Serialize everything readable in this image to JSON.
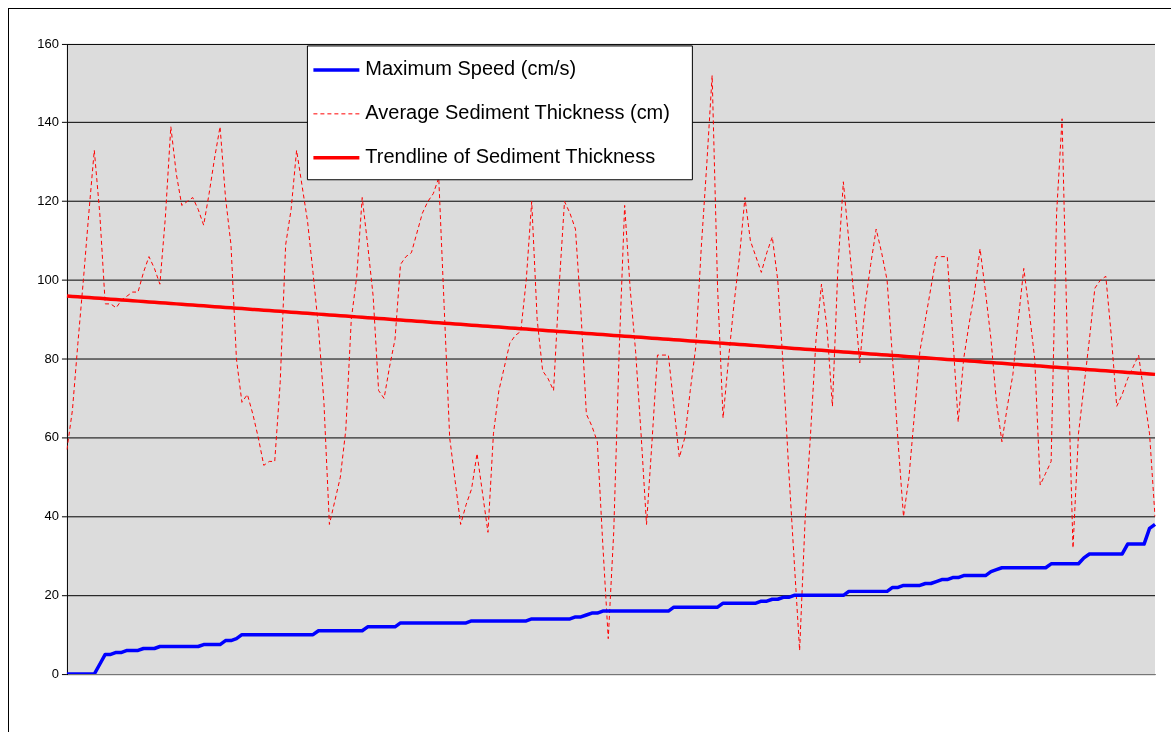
{
  "chart_data": {
    "type": "line",
    "categories": [
      null,
      null,
      null,
      null,
      null,
      null,
      null,
      null,
      null,
      null,
      null,
      null,
      null,
      null,
      null,
      null,
      null,
      null,
      null,
      null,
      null,
      null,
      null,
      null,
      null,
      null,
      null,
      null,
      null,
      null,
      null,
      null,
      null,
      null,
      null,
      null,
      null,
      null,
      null,
      null,
      null,
      null,
      null,
      null,
      null,
      null,
      null,
      null,
      null,
      null,
      null,
      null,
      null,
      null,
      null,
      null,
      null,
      null,
      null,
      null,
      null,
      null,
      null,
      null,
      null,
      null,
      null,
      null,
      null,
      null,
      null,
      null,
      null,
      null,
      null,
      null,
      null,
      null,
      null,
      null,
      null,
      null,
      null,
      null,
      null,
      null,
      null,
      null,
      null,
      null,
      null,
      null,
      null,
      null,
      null,
      null,
      null,
      null,
      null,
      null,
      null,
      null,
      null,
      null,
      null,
      null,
      null,
      null,
      null,
      null,
      null,
      null,
      null,
      null,
      null,
      null,
      null,
      null,
      null,
      null,
      null,
      null,
      null,
      null,
      null,
      null,
      null,
      null,
      null,
      null,
      null,
      null,
      null,
      null,
      null,
      null,
      null,
      null,
      null,
      null,
      null,
      null,
      null,
      null,
      null,
      null,
      null,
      null,
      null,
      null,
      null,
      null,
      null,
      null,
      null,
      null,
      null,
      null,
      null,
      null,
      null,
      null,
      null,
      null,
      null,
      null,
      null,
      null,
      null,
      null,
      null,
      null,
      null,
      null,
      null,
      null,
      null,
      null,
      null,
      null,
      null,
      null,
      null,
      null,
      null,
      null,
      null,
      null,
      null,
      null,
      null,
      null,
      null,
      null,
      null,
      null,
      null,
      null,
      null,
      null
    ],
    "ylim": [
      0,
      160
    ],
    "yticks": [
      0,
      20,
      40,
      60,
      80,
      100,
      120,
      140,
      160
    ],
    "grid": "y",
    "legend": "top",
    "tick_labels": "y",
    "marker": "none",
    "series": [
      {
        "name": "Maximum Speed (cm/s)",
        "color": "#0000ff",
        "line_style": "solid",
        "values": [
          0,
          0,
          0,
          0,
          0,
          0,
          2.5,
          5,
          5,
          5.5,
          5.5,
          6,
          6,
          6,
          6.5,
          6.5,
          6.5,
          7,
          7,
          7,
          7,
          7,
          7,
          7,
          7,
          7.5,
          7.5,
          7.5,
          7.5,
          8.5,
          8.5,
          9,
          10,
          10,
          10,
          10,
          10,
          10,
          10,
          10,
          10,
          10,
          10,
          10,
          10,
          10,
          11,
          11,
          11,
          11,
          11,
          11,
          11,
          11,
          11,
          12,
          12,
          12,
          12,
          12,
          12,
          13,
          13,
          13,
          13,
          13,
          13,
          13,
          13,
          13,
          13,
          13,
          13,
          13,
          13.5,
          13.5,
          13.5,
          13.5,
          13.5,
          13.5,
          13.5,
          13.5,
          13.5,
          13.5,
          13.5,
          14,
          14,
          14,
          14,
          14,
          14,
          14,
          14,
          14.5,
          14.5,
          15,
          15.5,
          15.5,
          16,
          16,
          16,
          16,
          16,
          16,
          16,
          16,
          16,
          16,
          16,
          16,
          16,
          17,
          17,
          17,
          17,
          17,
          17,
          17,
          17,
          17,
          18,
          18,
          18,
          18,
          18,
          18,
          18,
          18.5,
          18.5,
          19,
          19,
          19.5,
          19.5,
          20,
          20,
          20,
          20,
          20,
          20,
          20,
          20,
          20,
          20,
          21,
          21,
          21,
          21,
          21,
          21,
          21,
          21,
          22,
          22,
          22.5,
          22.5,
          22.5,
          22.5,
          23,
          23,
          23.5,
          24,
          24,
          24.5,
          24.5,
          25,
          25,
          25,
          25,
          25,
          26,
          26.5,
          27,
          27,
          27,
          27,
          27,
          27,
          27,
          27,
          27,
          28,
          28,
          28,
          28,
          28,
          28,
          29.5,
          30.5,
          30.5,
          30.5,
          30.5,
          30.5,
          30.5,
          30.5,
          33,
          33,
          33,
          33,
          37,
          38
        ]
      },
      {
        "name": "Average Sediment Thickness (cm)",
        "color": "#ff0000",
        "line_style": "dashed",
        "values": [
          57,
          67,
          84,
          100,
          117,
          133,
          117,
          94,
          94,
          93,
          95,
          96,
          97,
          97,
          102,
          106,
          103,
          99,
          116,
          139,
          127,
          119,
          120,
          121,
          118,
          114,
          122,
          131,
          139,
          121,
          109,
          80,
          69,
          71,
          66,
          60,
          53,
          54,
          54,
          74,
          109,
          118,
          133,
          124,
          115,
          102,
          88,
          69,
          38,
          44,
          50,
          62,
          90,
          101,
          121,
          109,
          96,
          72,
          70,
          78,
          85,
          104,
          106,
          107,
          112,
          117,
          120,
          122,
          126,
          93,
          60,
          49,
          38,
          43,
          47,
          56,
          46,
          36,
          61,
          72,
          78,
          84,
          86,
          87,
          100,
          120,
          90,
          77,
          75,
          72,
          98,
          120,
          117,
          113,
          92,
          66,
          63,
          59,
          33,
          9,
          36,
          82,
          119,
          98,
          82,
          61,
          38,
          59,
          81,
          81,
          81,
          68,
          55,
          60,
          72,
          83,
          108,
          129,
          152,
          98,
          65,
          80,
          94,
          106,
          121,
          110,
          106,
          102,
          107,
          111,
          100,
          78,
          52,
          29,
          6,
          39,
          61,
          85,
          99,
          88,
          68,
          103,
          125,
          110,
          95,
          79,
          94,
          104,
          113,
          107,
          100,
          80,
          59,
          40,
          50,
          66,
          82,
          90,
          98,
          106,
          106,
          106,
          86,
          64,
          80,
          89,
          97,
          108,
          97,
          85,
          69,
          59,
          68,
          76,
          90,
          103,
          92,
          80,
          48,
          51,
          54,
          117,
          141,
          82,
          32,
          61,
          73,
          85,
          98,
          100,
          101,
          86,
          68,
          71,
          75,
          78,
          81,
          71,
          61,
          40
        ]
      },
      {
        "name": "Trendline of Sediment Thickness",
        "color": "#ff0000",
        "line_style": "solid",
        "values": [
          96,
          95.9,
          95.8,
          95.7,
          95.6,
          95.5,
          95.4,
          95.3,
          95.2,
          95.1,
          95,
          94.9,
          94.8,
          94.7,
          94.6,
          94.5,
          94.4,
          94.3,
          94.2,
          94.1,
          94,
          93.9,
          93.8,
          93.7,
          93.6,
          93.5,
          93.4,
          93.3,
          93.2,
          93.1,
          93,
          92.9,
          92.8,
          92.7,
          92.6,
          92.5,
          92.4,
          92.3,
          92.2,
          92.1,
          92,
          91.9,
          91.8,
          91.7,
          91.6,
          91.5,
          91.4,
          91.3,
          91.2,
          91.1,
          91,
          90.9,
          90.8,
          90.7,
          90.6,
          90.5,
          90.4,
          90.3,
          90.2,
          90.1,
          90,
          89.9,
          89.8,
          89.7,
          89.6,
          89.5,
          89.4,
          89.3,
          89.2,
          89.1,
          89,
          88.9,
          88.8,
          88.7,
          88.6,
          88.5,
          88.4,
          88.3,
          88.2,
          88.1,
          88,
          87.9,
          87.8,
          87.7,
          87.6,
          87.5,
          87.4,
          87.3,
          87.2,
          87.1,
          87,
          86.9,
          86.8,
          86.7,
          86.6,
          86.5,
          86.4,
          86.3,
          86.2,
          86.1,
          86,
          85.9,
          85.8,
          85.7,
          85.6,
          85.5,
          85.4,
          85.3,
          85.2,
          85.1,
          85,
          84.9,
          84.8,
          84.7,
          84.6,
          84.5,
          84.4,
          84.3,
          84.2,
          84.1,
          84,
          83.9,
          83.8,
          83.7,
          83.6,
          83.5,
          83.4,
          83.3,
          83.2,
          83.1,
          83,
          82.9,
          82.8,
          82.7,
          82.6,
          82.5,
          82.4,
          82.3,
          82.2,
          82.1,
          82,
          81.9,
          81.8,
          81.7,
          81.6,
          81.5,
          81.4,
          81.3,
          81.2,
          81.1,
          81,
          80.9,
          80.8,
          80.7,
          80.6,
          80.5,
          80.4,
          80.3,
          80.2,
          80.1,
          80,
          79.9,
          79.8,
          79.7,
          79.6,
          79.5,
          79.4,
          79.3,
          79.2,
          79.1,
          79,
          78.9,
          78.8,
          78.7,
          78.6,
          78.5,
          78.4,
          78.3,
          78.2,
          78.1,
          78,
          77.9,
          77.8,
          77.7,
          77.6,
          77.5,
          77.4,
          77.3,
          77.2,
          77.1,
          77,
          76.9,
          76.8,
          76.7,
          76.6,
          76.5,
          76.4,
          76.3,
          76.2,
          76.1
        ]
      }
    ]
  }
}
